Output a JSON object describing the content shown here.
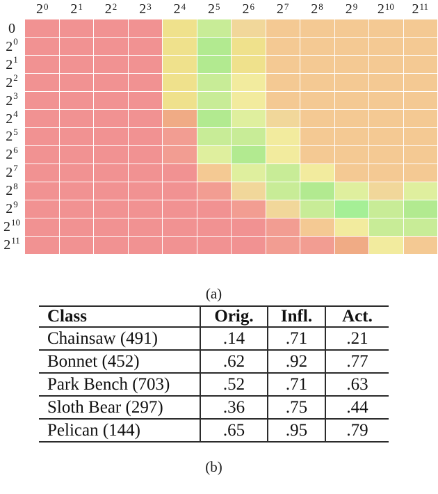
{
  "figure": {
    "caption_a": "(a)",
    "caption_b": "(b)"
  },
  "chart_data": {
    "type": "heatmap",
    "x_tick_labels": [
      "2^0",
      "2^1",
      "2^2",
      "2^3",
      "2^4",
      "2^5",
      "2^6",
      "2^7",
      "2^8",
      "2^9",
      "2^10",
      "2^11"
    ],
    "y_tick_labels": [
      "0",
      "2^0",
      "2^1",
      "2^2",
      "2^3",
      "2^4",
      "2^5",
      "2^6",
      "2^7",
      "2^8",
      "2^9",
      "2^10",
      "2^11"
    ],
    "col_labels": [
      {
        "base": "2",
        "exp": "0"
      },
      {
        "base": "2",
        "exp": "1"
      },
      {
        "base": "2",
        "exp": "2"
      },
      {
        "base": "2",
        "exp": "3"
      },
      {
        "base": "2",
        "exp": "4"
      },
      {
        "base": "2",
        "exp": "5"
      },
      {
        "base": "2",
        "exp": "6"
      },
      {
        "base": "2",
        "exp": "7"
      },
      {
        "base": "2",
        "exp": "8"
      },
      {
        "base": "2",
        "exp": "9"
      },
      {
        "base": "2",
        "exp": "10"
      },
      {
        "base": "2",
        "exp": "11"
      }
    ],
    "row_labels": [
      {
        "base": "0",
        "exp": ""
      },
      {
        "base": "2",
        "exp": "0"
      },
      {
        "base": "2",
        "exp": "1"
      },
      {
        "base": "2",
        "exp": "2"
      },
      {
        "base": "2",
        "exp": "3"
      },
      {
        "base": "2",
        "exp": "4"
      },
      {
        "base": "2",
        "exp": "5"
      },
      {
        "base": "2",
        "exp": "6"
      },
      {
        "base": "2",
        "exp": "7"
      },
      {
        "base": "2",
        "exp": "8"
      },
      {
        "base": "2",
        "exp": "9"
      },
      {
        "base": "2",
        "exp": "10"
      },
      {
        "base": "2",
        "exp": "11"
      }
    ],
    "palette": {
      "R": "#f19292",
      "R2": "#f29d92",
      "O": "#f0ab85",
      "T": "#f4c993",
      "TY": "#f1d79a",
      "Y": "#efe18c",
      "PY": "#f2eb9e",
      "YG": "#dfef9e",
      "LG": "#c8ec97",
      "G": "#b2ea90",
      "BG": "#a5ef96"
    },
    "cells": [
      [
        "R",
        "R",
        "R",
        "R",
        "Y",
        "LG",
        "TY",
        "T",
        "T",
        "T",
        "T",
        "T"
      ],
      [
        "R",
        "R",
        "R",
        "R",
        "Y",
        "G",
        "Y",
        "T",
        "T",
        "T",
        "T",
        "T"
      ],
      [
        "R",
        "R",
        "R",
        "R",
        "Y",
        "G",
        "Y",
        "T",
        "T",
        "T",
        "T",
        "T"
      ],
      [
        "R",
        "R",
        "R",
        "R",
        "Y",
        "LG",
        "PY",
        "T",
        "T",
        "T",
        "T",
        "T"
      ],
      [
        "R",
        "R",
        "R",
        "R",
        "Y",
        "LG",
        "PY",
        "T",
        "T",
        "T",
        "T",
        "T"
      ],
      [
        "R",
        "R",
        "R",
        "R",
        "O",
        "G",
        "YG",
        "TY",
        "T",
        "T",
        "T",
        "T"
      ],
      [
        "R",
        "R",
        "R",
        "R",
        "R2",
        "LG",
        "LG",
        "PY",
        "T",
        "T",
        "T",
        "T"
      ],
      [
        "R",
        "R",
        "R",
        "R",
        "R2",
        "YG",
        "G",
        "PY",
        "T",
        "T",
        "T",
        "T"
      ],
      [
        "R",
        "R",
        "R",
        "R",
        "R",
        "T",
        "YG",
        "LG",
        "PY",
        "T",
        "T",
        "T"
      ],
      [
        "R",
        "R",
        "R",
        "R",
        "R",
        "R2",
        "TY",
        "LG",
        "G",
        "YG",
        "TY",
        "YG"
      ],
      [
        "R",
        "R",
        "R",
        "R",
        "R",
        "R",
        "R2",
        "TY",
        "LG",
        "BG",
        "LG",
        "G"
      ],
      [
        "R",
        "R",
        "R",
        "R",
        "R",
        "R",
        "R",
        "R2",
        "T",
        "PY",
        "LG",
        "LG"
      ],
      [
        "R",
        "R",
        "R",
        "R",
        "R",
        "R",
        "R",
        "R2",
        "R2",
        "O",
        "PY",
        "T"
      ]
    ],
    "grid": "thin white gridlines",
    "legend": "none"
  },
  "table": {
    "headers": [
      "Class",
      "Orig.",
      "Infl.",
      "Act."
    ],
    "rows": [
      [
        "Chainsaw (491)",
        ".14",
        ".71",
        ".21"
      ],
      [
        "Bonnet (452)",
        ".62",
        ".92",
        ".77"
      ],
      [
        "Park Bench (703)",
        ".52",
        ".71",
        ".63"
      ],
      [
        "Sloth Bear (297)",
        ".36",
        ".75",
        ".44"
      ],
      [
        "Pelican (144)",
        ".65",
        ".95",
        ".79"
      ]
    ]
  }
}
